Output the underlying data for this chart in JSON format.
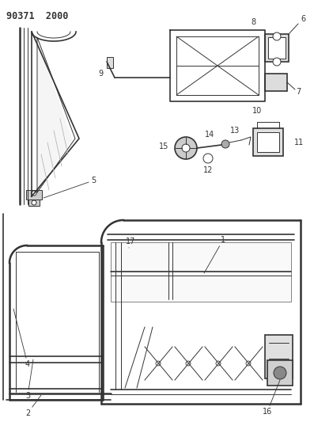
{
  "title": "90371  2000",
  "bg_color": "#ffffff",
  "lc": "#333333",
  "figsize": [
    3.97,
    5.33
  ],
  "dpi": 100,
  "xlim": [
    0,
    397
  ],
  "ylim": [
    0,
    533
  ]
}
